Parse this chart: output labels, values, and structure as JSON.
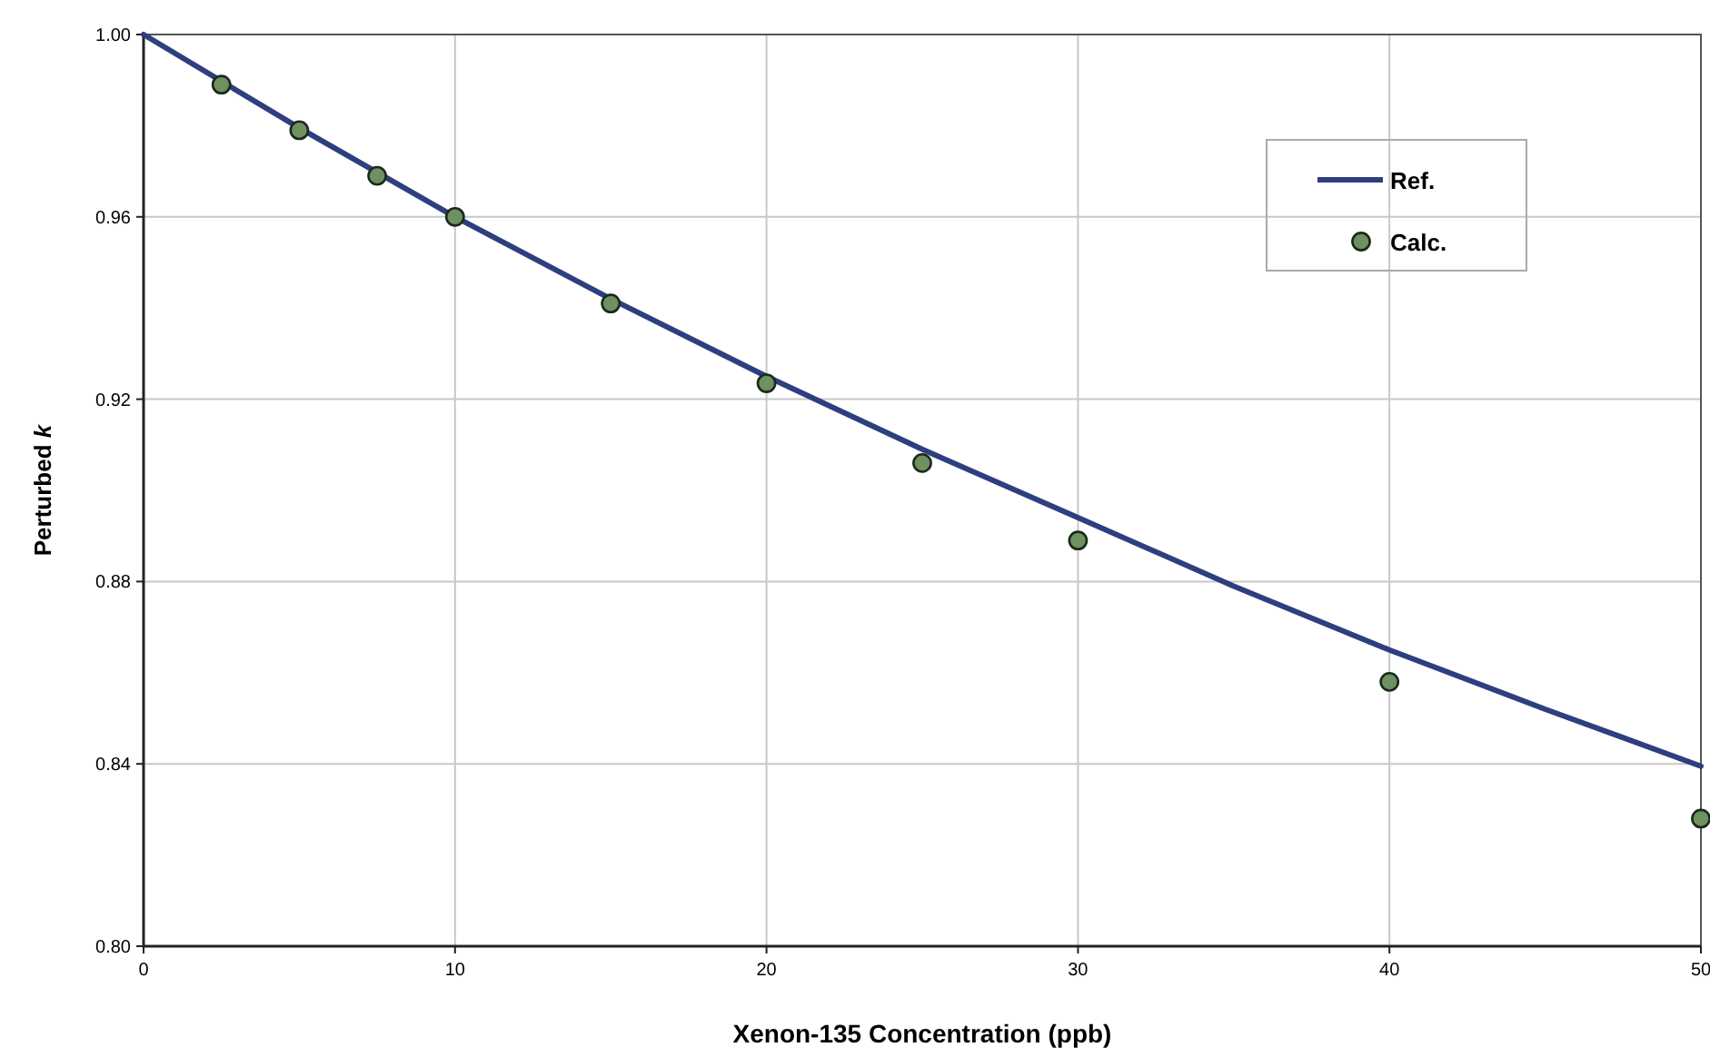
{
  "chart_data": {
    "type": "line",
    "xlabel": "Xenon-135 Concentration (ppb)",
    "ylabel": "Perturbed k",
    "xlim": [
      0,
      50
    ],
    "xticks": [
      0,
      10,
      20,
      30,
      40,
      50
    ],
    "ylim": [
      0.8,
      1.0
    ],
    "yticks": [
      {
        "value": 0.8,
        "label": "0.80"
      },
      0.84,
      0.88,
      0.92,
      0.96,
      {
        "value": 1.0,
        "label": "1.00"
      }
    ],
    "grid": true,
    "legend": "top right",
    "series": [
      {
        "name": "Ref.",
        "color": "#2e3f7f",
        "marker": "none",
        "line_style": "solid",
        "x": [
          0,
          5,
          10,
          15,
          20,
          25,
          30,
          35,
          40,
          45,
          50
        ],
        "values": [
          1.0,
          0.9795,
          0.96,
          0.942,
          0.925,
          0.909,
          0.894,
          0.879,
          0.865,
          0.852,
          0.8395
        ]
      },
      {
        "name": "Calc.",
        "type": "scatter",
        "color": "#6f9060",
        "marker": "circle",
        "x": [
          2.5,
          5,
          7.5,
          10,
          15,
          20,
          25,
          30,
          40,
          50
        ],
        "values": [
          0.989,
          0.979,
          0.969,
          0.96,
          0.941,
          0.9235,
          0.906,
          0.889,
          0.858,
          0.828
        ]
      }
    ]
  }
}
